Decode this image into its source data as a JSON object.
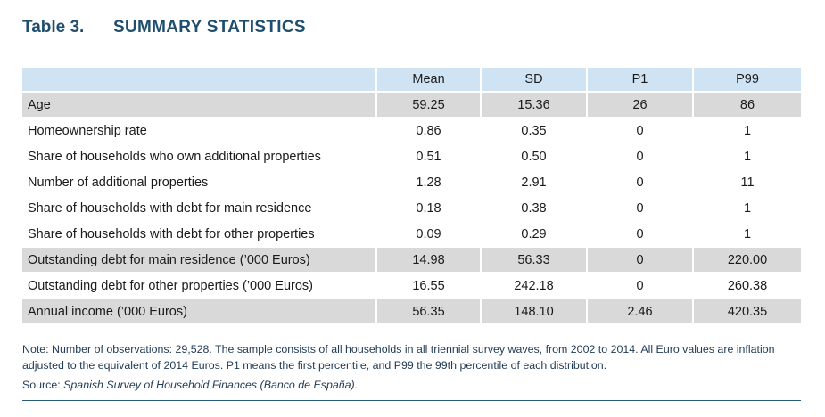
{
  "title": {
    "number": "Table 3.",
    "text": "SUMMARY STATISTICS"
  },
  "table": {
    "headers": [
      "",
      "Mean",
      "SD",
      "P1",
      "P99"
    ],
    "rows": [
      {
        "label": "Age",
        "cells": [
          "59.25",
          "15.36",
          "26",
          "86"
        ]
      },
      {
        "label": "Homeownership rate",
        "cells": [
          "0.86",
          "0.35",
          "0",
          "1"
        ]
      },
      {
        "label": "Share of households who own additional properties",
        "cells": [
          "0.51",
          "0.50",
          "0",
          "1"
        ]
      },
      {
        "label": "Number of additional properties",
        "cells": [
          "1.28",
          "2.91",
          "0",
          "11"
        ]
      },
      {
        "label": "Share of households with debt for main residence",
        "cells": [
          "0.18",
          "0.38",
          "0",
          "1"
        ]
      },
      {
        "label": "Share of households with debt for other properties",
        "cells": [
          "0.09",
          "0.29",
          "0",
          "1"
        ]
      },
      {
        "label": "Outstanding debt for main residence (’000 Euros)",
        "cells": [
          "14.98",
          "56.33",
          "0",
          "220.00"
        ]
      },
      {
        "label": "Outstanding debt for other properties (’000 Euros)",
        "cells": [
          "16.55",
          "242.18",
          "0",
          "260.38"
        ]
      },
      {
        "label": "Annual income (’000 Euros)",
        "cells": [
          "56.35",
          "148.10",
          "2.46",
          "420.35"
        ]
      }
    ]
  },
  "notes": {
    "note": "Note: Number of observations: 29,528. The sample consists of all households in all triennial survey waves, from 2002 to 2014. All Euro values are inflation adjusted to the equivalent of 2014 Euros. P1 means the first percentile, and P99 the 99th percentile of each distribution.",
    "source_label": "Source: ",
    "source_text": "Spanish Survey of Household Finances (Banco de España)."
  },
  "colors": {
    "title": "#1f4e6e",
    "header_bg": "#cfe3f3",
    "shaded_row": "#d9d9d9",
    "note_text": "#1f3a55"
  }
}
